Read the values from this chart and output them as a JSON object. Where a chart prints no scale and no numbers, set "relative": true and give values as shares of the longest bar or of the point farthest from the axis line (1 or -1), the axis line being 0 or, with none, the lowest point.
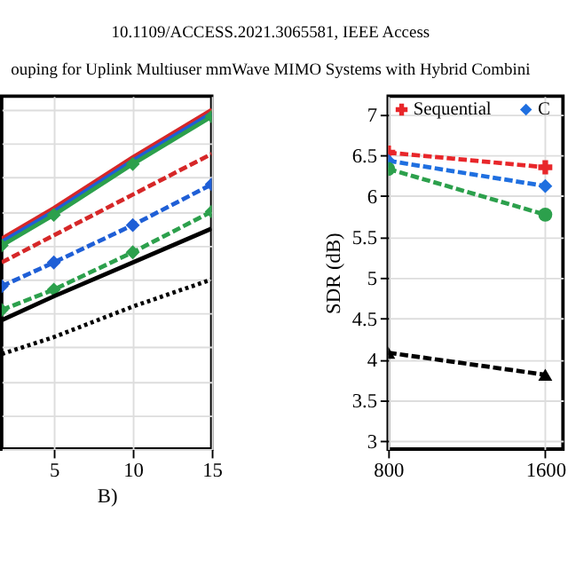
{
  "chart_data": [
    {
      "type": "line",
      "relative": true,
      "xlabel": "B)",
      "xlim": [
        1.7,
        15
      ],
      "xticks": [
        5,
        10,
        15
      ],
      "grid": true,
      "tick_labels": "x",
      "annotations": [
        "10.1109/ACCESS.2021.3065581, IEEE Access",
        "ouping for Uplink Multiuser mmWave MIMO Systems with Hybrid Combini"
      ],
      "x": [
        1.7,
        5,
        10,
        15
      ],
      "series": [
        {
          "color": "#d62728",
          "line_style": "solid",
          "marker": "none",
          "values": [
            0.62,
            0.71,
            0.86,
            1.0
          ]
        },
        {
          "color": "#1f5fd6",
          "line_style": "solid",
          "marker": "none",
          "values": [
            0.61,
            0.7,
            0.85,
            0.99
          ]
        },
        {
          "color": "#2ca04c",
          "line_style": "solid",
          "marker": "diamond",
          "values": [
            0.6,
            0.69,
            0.84,
            0.98
          ]
        },
        {
          "color": "#d62728",
          "line_style": "dashed",
          "marker": "none",
          "values": [
            0.55,
            0.63,
            0.75,
            0.87
          ]
        },
        {
          "color": "#1f5fd6",
          "line_style": "dashed",
          "marker": "diamond",
          "values": [
            0.48,
            0.55,
            0.66,
            0.78
          ]
        },
        {
          "color": "#2ca04c",
          "line_style": "dashed",
          "marker": "diamond",
          "values": [
            0.41,
            0.47,
            0.58,
            0.7
          ]
        },
        {
          "color": "#000000",
          "line_style": "solid",
          "marker": "none",
          "values": [
            0.38,
            0.45,
            0.55,
            0.65
          ]
        },
        {
          "color": "#000000",
          "line_style": "dotted",
          "marker": "none",
          "values": [
            0.28,
            0.33,
            0.42,
            0.5
          ]
        }
      ]
    },
    {
      "type": "line",
      "ylabel": "SDR (dB)",
      "xlim": [
        800,
        1690
      ],
      "xticks": [
        800,
        1600
      ],
      "ylim": [
        2.9,
        7.22
      ],
      "yticks": [
        3,
        3.5,
        4,
        4.5,
        5,
        5.5,
        6,
        6.5,
        7
      ],
      "grid": true,
      "legend": "top",
      "x": [
        800,
        1600
      ],
      "series": [
        {
          "name": "Sequential",
          "color": "#e8262a",
          "line_style": "dashed",
          "marker": "cross",
          "values": [
            6.53,
            6.35
          ]
        },
        {
          "name": "C",
          "color": "#1f6fe0",
          "line_style": "dashed",
          "marker": "diamond",
          "values": [
            6.43,
            6.12
          ]
        },
        {
          "color": "#2ca04c",
          "line_style": "dashed",
          "marker": "circle",
          "values": [
            6.33,
            5.77
          ]
        },
        {
          "color": "#000000",
          "line_style": "dashed",
          "marker": "triangle",
          "values": [
            4.08,
            3.81
          ]
        }
      ]
    }
  ]
}
